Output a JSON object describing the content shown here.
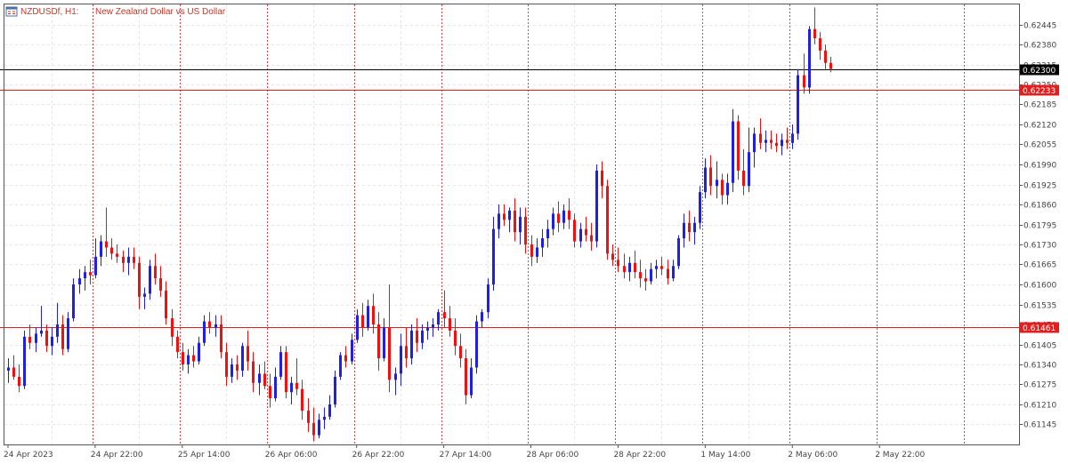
{
  "header": {
    "symbol_label": "NZDUSDf, H1:",
    "description": "New Zealand Dollar vs US Dollar",
    "icon": "chart-window-icon"
  },
  "colors": {
    "background": "#ffffff",
    "bull": "#1f1fe6",
    "bear": "#f01010",
    "grid": "#e6e6e6",
    "separator": "#e04040",
    "price_line": "#000000",
    "level_line": "#e02020",
    "badge_level": "#e02020",
    "badge_price": "#000000"
  },
  "chart_data": {
    "type": "candlestick",
    "symbol": "NZDUSDf",
    "timeframe": "H1",
    "ylim": [
      0.6108,
      0.6251
    ],
    "y_ticks": [
      "0.62445",
      "0.62380",
      "0.62315",
      "0.62250",
      "0.62185",
      "0.62120",
      "0.62055",
      "0.61990",
      "0.61925",
      "0.61860",
      "0.61795",
      "0.61730",
      "0.61665",
      "0.61600",
      "0.61535",
      "0.61470",
      "0.61405",
      "0.61340",
      "0.61275",
      "0.61210",
      "0.61145"
    ],
    "x_labels": [
      {
        "index": 0,
        "label": "24 Apr 2023"
      },
      {
        "index": 16,
        "label": "24 Apr 22:00"
      },
      {
        "index": 32,
        "label": "25 Apr 14:00"
      },
      {
        "index": 48,
        "label": "26 Apr 06:00"
      },
      {
        "index": 64,
        "label": "26 Apr 22:00"
      },
      {
        "index": 80,
        "label": "27 Apr 14:00"
      },
      {
        "index": 96,
        "label": "28 Apr 06:00"
      },
      {
        "index": 112,
        "label": "28 Apr 22:00"
      },
      {
        "index": 128,
        "label": "1 May 14:00"
      },
      {
        "index": 144,
        "label": "2 May 06:00"
      },
      {
        "index": 160,
        "label": "2 May 22:00"
      }
    ],
    "separators": [
      15.5,
      31.5,
      47.5,
      63.5,
      79.5,
      95.5,
      111.5,
      127.5,
      143.5,
      159.5,
      175.5
    ],
    "levels": [
      {
        "price": 0.623,
        "label": "0.62300",
        "kind": "current"
      },
      {
        "price": 0.62233,
        "label": "0.62233",
        "kind": "level"
      },
      {
        "price": 0.61461,
        "label": "0.61461",
        "kind": "level"
      }
    ],
    "candles": [
      [
        0.6132,
        0.6136,
        0.6128,
        0.6133
      ],
      [
        0.6133,
        0.6137,
        0.6129,
        0.613
      ],
      [
        0.613,
        0.6134,
        0.6125,
        0.6127
      ],
      [
        0.6127,
        0.6145,
        0.6126,
        0.6143
      ],
      [
        0.6143,
        0.6147,
        0.6139,
        0.6141
      ],
      [
        0.6141,
        0.6146,
        0.6138,
        0.6144
      ],
      [
        0.6144,
        0.6153,
        0.6143,
        0.6145
      ],
      [
        0.6145,
        0.6147,
        0.6138,
        0.614
      ],
      [
        0.614,
        0.6146,
        0.6137,
        0.6143
      ],
      [
        0.6143,
        0.6154,
        0.6141,
        0.6147
      ],
      [
        0.6147,
        0.615,
        0.6137,
        0.6139
      ],
      [
        0.6139,
        0.6151,
        0.6138,
        0.6149
      ],
      [
        0.6149,
        0.6162,
        0.6148,
        0.616
      ],
      [
        0.616,
        0.6165,
        0.6157,
        0.6162
      ],
      [
        0.6162,
        0.6166,
        0.6158,
        0.6164
      ],
      [
        0.6164,
        0.6168,
        0.616,
        0.6163
      ],
      [
        0.6163,
        0.6175,
        0.6162,
        0.6169
      ],
      [
        0.6169,
        0.6176,
        0.6166,
        0.6174
      ],
      [
        0.6174,
        0.6185,
        0.6169,
        0.6172
      ],
      [
        0.6172,
        0.6175,
        0.6168,
        0.617
      ],
      [
        0.617,
        0.6173,
        0.6167,
        0.6169
      ],
      [
        0.6169,
        0.6171,
        0.6164,
        0.6167
      ],
      [
        0.6167,
        0.6172,
        0.6163,
        0.6169
      ],
      [
        0.6169,
        0.6172,
        0.6165,
        0.6167
      ],
      [
        0.6167,
        0.6169,
        0.6152,
        0.6156
      ],
      [
        0.6156,
        0.6159,
        0.6152,
        0.6157
      ],
      [
        0.6157,
        0.6168,
        0.6155,
        0.6166
      ],
      [
        0.6166,
        0.617,
        0.616,
        0.6162
      ],
      [
        0.6162,
        0.6166,
        0.6156,
        0.6158
      ],
      [
        0.6158,
        0.6161,
        0.6147,
        0.6149
      ],
      [
        0.6149,
        0.6152,
        0.614,
        0.6143
      ],
      [
        0.6143,
        0.6145,
        0.6136,
        0.6138
      ],
      [
        0.6138,
        0.6141,
        0.6132,
        0.6134
      ],
      [
        0.6134,
        0.6139,
        0.6131,
        0.6137
      ],
      [
        0.6137,
        0.614,
        0.6133,
        0.6135
      ],
      [
        0.6135,
        0.6143,
        0.6134,
        0.6141
      ],
      [
        0.6141,
        0.615,
        0.614,
        0.6148
      ],
      [
        0.6148,
        0.6151,
        0.6144,
        0.6146
      ],
      [
        0.6146,
        0.615,
        0.6143,
        0.6147
      ],
      [
        0.6147,
        0.615,
        0.6136,
        0.6138
      ],
      [
        0.6138,
        0.6141,
        0.6127,
        0.613
      ],
      [
        0.613,
        0.6136,
        0.6128,
        0.6134
      ],
      [
        0.6134,
        0.6137,
        0.6129,
        0.6132
      ],
      [
        0.6132,
        0.6141,
        0.613,
        0.614
      ],
      [
        0.614,
        0.6145,
        0.6132,
        0.6135
      ],
      [
        0.6135,
        0.6138,
        0.6125,
        0.6128
      ],
      [
        0.6128,
        0.6134,
        0.6124,
        0.6131
      ],
      [
        0.6131,
        0.6135,
        0.6126,
        0.6127
      ],
      [
        0.6127,
        0.6131,
        0.612,
        0.6123
      ],
      [
        0.6123,
        0.6133,
        0.6122,
        0.613
      ],
      [
        0.613,
        0.614,
        0.6129,
        0.6138
      ],
      [
        0.6138,
        0.614,
        0.6123,
        0.6125
      ],
      [
        0.6125,
        0.613,
        0.6121,
        0.6128
      ],
      [
        0.6128,
        0.6136,
        0.6124,
        0.6126
      ],
      [
        0.6126,
        0.6129,
        0.6116,
        0.6119
      ],
      [
        0.6119,
        0.6123,
        0.6112,
        0.6115
      ],
      [
        0.6115,
        0.612,
        0.6109,
        0.6111
      ],
      [
        0.6111,
        0.6118,
        0.611,
        0.6116
      ],
      [
        0.6116,
        0.612,
        0.6113,
        0.6117
      ],
      [
        0.6117,
        0.6124,
        0.6116,
        0.6121
      ],
      [
        0.6121,
        0.6132,
        0.612,
        0.613
      ],
      [
        0.613,
        0.6138,
        0.6129,
        0.6137
      ],
      [
        0.6137,
        0.614,
        0.6133,
        0.6135
      ],
      [
        0.6135,
        0.6144,
        0.6134,
        0.6142
      ],
      [
        0.6142,
        0.6152,
        0.6141,
        0.615
      ],
      [
        0.615,
        0.6154,
        0.6143,
        0.6146
      ],
      [
        0.6146,
        0.6155,
        0.6145,
        0.6153
      ],
      [
        0.6153,
        0.6157,
        0.6144,
        0.6147
      ],
      [
        0.6147,
        0.6151,
        0.6132,
        0.6136
      ],
      [
        0.6136,
        0.6149,
        0.6135,
        0.6146
      ],
      [
        0.6146,
        0.616,
        0.6125,
        0.6129
      ],
      [
        0.6129,
        0.6133,
        0.6124,
        0.6131
      ],
      [
        0.6131,
        0.6144,
        0.6127,
        0.614
      ],
      [
        0.614,
        0.6146,
        0.6133,
        0.6136
      ],
      [
        0.6136,
        0.6147,
        0.6134,
        0.6145
      ],
      [
        0.6145,
        0.6149,
        0.6138,
        0.6141
      ],
      [
        0.6141,
        0.6147,
        0.6139,
        0.6145
      ],
      [
        0.6145,
        0.6148,
        0.6142,
        0.6146
      ],
      [
        0.6146,
        0.6149,
        0.6143,
        0.6147
      ],
      [
        0.6147,
        0.6152,
        0.6145,
        0.6151
      ],
      [
        0.6151,
        0.6158,
        0.6146,
        0.6149
      ],
      [
        0.6149,
        0.6153,
        0.6143,
        0.6145
      ],
      [
        0.6145,
        0.6149,
        0.6137,
        0.614
      ],
      [
        0.614,
        0.6144,
        0.6133,
        0.6136
      ],
      [
        0.6136,
        0.6139,
        0.6121,
        0.6124
      ],
      [
        0.6124,
        0.6136,
        0.6123,
        0.6133
      ],
      [
        0.6133,
        0.615,
        0.6131,
        0.6148
      ],
      [
        0.6148,
        0.6152,
        0.6146,
        0.6151
      ],
      [
        0.6151,
        0.6162,
        0.6149,
        0.616
      ],
      [
        0.616,
        0.6182,
        0.6158,
        0.6178
      ],
      [
        0.6178,
        0.6186,
        0.6175,
        0.6183
      ],
      [
        0.6183,
        0.6186,
        0.6179,
        0.6181
      ],
      [
        0.6181,
        0.6185,
        0.6177,
        0.6184
      ],
      [
        0.6184,
        0.6188,
        0.6174,
        0.6177
      ],
      [
        0.6177,
        0.6185,
        0.6173,
        0.6182
      ],
      [
        0.6182,
        0.6185,
        0.617,
        0.6173
      ],
      [
        0.6173,
        0.6176,
        0.6166,
        0.6169
      ],
      [
        0.6169,
        0.6175,
        0.6167,
        0.6172
      ],
      [
        0.6172,
        0.6178,
        0.6169,
        0.6175
      ],
      [
        0.6175,
        0.6181,
        0.6172,
        0.6178
      ],
      [
        0.6178,
        0.6185,
        0.6176,
        0.6183
      ],
      [
        0.6183,
        0.6187,
        0.6177,
        0.618
      ],
      [
        0.618,
        0.6186,
        0.6178,
        0.6184
      ],
      [
        0.6184,
        0.6188,
        0.6178,
        0.6181
      ],
      [
        0.6181,
        0.6183,
        0.6172,
        0.6174
      ],
      [
        0.6174,
        0.618,
        0.6172,
        0.6178
      ],
      [
        0.6178,
        0.6182,
        0.6174,
        0.6176
      ],
      [
        0.6176,
        0.618,
        0.6171,
        0.6174
      ],
      [
        0.6174,
        0.6199,
        0.6172,
        0.6197
      ],
      [
        0.6197,
        0.62,
        0.6188,
        0.6192
      ],
      [
        0.6192,
        0.6194,
        0.6168,
        0.617
      ],
      [
        0.617,
        0.6173,
        0.6166,
        0.6168
      ],
      [
        0.6168,
        0.6172,
        0.6164,
        0.6166
      ],
      [
        0.6166,
        0.617,
        0.6162,
        0.6164
      ],
      [
        0.6164,
        0.6169,
        0.6161,
        0.6167
      ],
      [
        0.6167,
        0.6171,
        0.6162,
        0.6164
      ],
      [
        0.6164,
        0.6168,
        0.6159,
        0.6162
      ],
      [
        0.6162,
        0.6165,
        0.6158,
        0.6161
      ],
      [
        0.6161,
        0.6167,
        0.616,
        0.6165
      ],
      [
        0.6165,
        0.6168,
        0.6162,
        0.6166
      ],
      [
        0.6166,
        0.6169,
        0.6163,
        0.6165
      ],
      [
        0.6165,
        0.6168,
        0.616,
        0.6162
      ],
      [
        0.6162,
        0.6168,
        0.6161,
        0.6166
      ],
      [
        0.6166,
        0.6176,
        0.6165,
        0.6175
      ],
      [
        0.6175,
        0.6183,
        0.6172,
        0.618
      ],
      [
        0.618,
        0.6184,
        0.6174,
        0.6177
      ],
      [
        0.6177,
        0.6182,
        0.6173,
        0.618
      ],
      [
        0.618,
        0.6192,
        0.6178,
        0.619
      ],
      [
        0.619,
        0.6201,
        0.6188,
        0.6198
      ],
      [
        0.6198,
        0.6202,
        0.6189,
        0.6192
      ],
      [
        0.6192,
        0.62,
        0.6188,
        0.6194
      ],
      [
        0.6194,
        0.6196,
        0.6186,
        0.6189
      ],
      [
        0.6189,
        0.6196,
        0.6186,
        0.6193
      ],
      [
        0.6193,
        0.6217,
        0.619,
        0.6213
      ],
      [
        0.6213,
        0.6215,
        0.6194,
        0.6197
      ],
      [
        0.6197,
        0.6204,
        0.6189,
        0.6192
      ],
      [
        0.6192,
        0.6211,
        0.619,
        0.6203
      ],
      [
        0.6203,
        0.6211,
        0.6198,
        0.6209
      ],
      [
        0.6209,
        0.6214,
        0.6204,
        0.6206
      ],
      [
        0.6206,
        0.621,
        0.6203,
        0.6207
      ],
      [
        0.6207,
        0.621,
        0.6204,
        0.6206
      ],
      [
        0.6206,
        0.6209,
        0.6203,
        0.6205
      ],
      [
        0.6205,
        0.6209,
        0.6202,
        0.6207
      ],
      [
        0.6207,
        0.6211,
        0.6204,
        0.6206
      ],
      [
        0.6206,
        0.6212,
        0.6204,
        0.6209
      ],
      [
        0.6209,
        0.623,
        0.6207,
        0.6228
      ],
      [
        0.6228,
        0.6235,
        0.6222,
        0.6224
      ],
      [
        0.6224,
        0.6244,
        0.6222,
        0.6243
      ],
      [
        0.6243,
        0.625,
        0.6238,
        0.624
      ],
      [
        0.624,
        0.6242,
        0.6233,
        0.6236
      ],
      [
        0.6236,
        0.6238,
        0.623,
        0.6232
      ],
      [
        0.6232,
        0.6234,
        0.6229,
        0.623
      ]
    ]
  }
}
